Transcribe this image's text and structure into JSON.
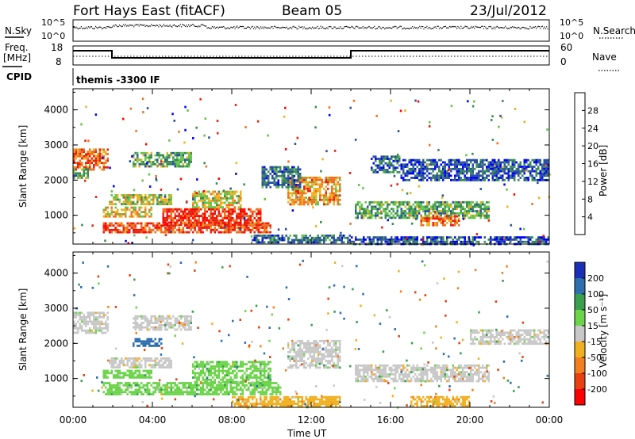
{
  "header": {
    "station": "Fort Hays East (fitACF)",
    "beam": "Beam 05",
    "date": "23/Jul/2012"
  },
  "top_panels": {
    "nsky_label": "N.Sky",
    "nsearch_label": "N.Search",
    "nsky_ticks": [
      "10^5",
      "10^0"
    ],
    "nsearch_ticks": [
      "10^5",
      "10^0"
    ],
    "freq_label_1": "Freq.",
    "freq_label_2": "[MHz]",
    "freq_ticks": [
      "18",
      "8"
    ],
    "nave_label": "Nave",
    "nave_ticks": [
      "60",
      "0"
    ],
    "cpid_label": "CPID",
    "cpid_text": "themis -3300 IF"
  },
  "x_axis": {
    "label": "Time UT",
    "ticks": [
      "00:00",
      "04:00",
      "08:00",
      "12:00",
      "16:00",
      "20:00",
      "00:00"
    ]
  },
  "colorbars": {
    "power": {
      "label": "Power [dB]",
      "ticks": [
        "28",
        "24",
        "20",
        "16",
        "12",
        "8",
        "4"
      ],
      "colors": [
        "#0000ff",
        "#2a4ea5",
        "#3a8a55",
        "#63c34a",
        "#f0b020",
        "#f07020",
        "#e82010",
        "#ff0000"
      ]
    },
    "velocity": {
      "label": "Velocity [m s⁻¹]",
      "ticks": [
        "200",
        "100",
        "50",
        "15",
        "-15",
        "-50",
        "-100",
        "-200"
      ],
      "colors": [
        "#1a2fb8",
        "#2e6fae",
        "#3aa050",
        "#6cd44a",
        "#c8c8c8",
        "#f0b020",
        "#f28020",
        "#e84010",
        "#ff0000"
      ]
    }
  },
  "chart_data": [
    {
      "type": "heatmap",
      "title": "Power",
      "ylabel": "Slant Range [km]",
      "xlabel": "",
      "x_ticks": [
        "00:00",
        "04:00",
        "08:00",
        "12:00",
        "16:00",
        "20:00",
        "00:00"
      ],
      "y_ticks": [
        "1000",
        "2000",
        "3000",
        "4000"
      ],
      "xlim_hours": [
        0,
        24
      ],
      "ylim_km": [
        180,
        4600
      ],
      "regions": [
        {
          "t0": 0.0,
          "t1": 1.8,
          "r0": 2300,
          "r1": 2900,
          "value": 22
        },
        {
          "t0": 0.0,
          "t1": 0.8,
          "r0": 2050,
          "r1": 2350,
          "value": 12
        },
        {
          "t0": 1.8,
          "t1": 5.0,
          "r0": 1300,
          "r1": 1600,
          "value": 16
        },
        {
          "t0": 3.0,
          "t1": 6.0,
          "r0": 2400,
          "r1": 2800,
          "value": 12
        },
        {
          "t0": 1.5,
          "t1": 4.0,
          "r0": 950,
          "r1": 1250,
          "value": 18
        },
        {
          "t0": 1.5,
          "t1": 10.0,
          "r0": 500,
          "r1": 800,
          "value": 24
        },
        {
          "t0": 4.5,
          "t1": 9.5,
          "r0": 700,
          "r1": 1200,
          "value": 26
        },
        {
          "t0": 6.0,
          "t1": 8.5,
          "r0": 1200,
          "r1": 1700,
          "value": 16
        },
        {
          "t0": 10.8,
          "t1": 13.5,
          "r0": 1300,
          "r1": 2100,
          "value": 20
        },
        {
          "t0": 14.2,
          "t1": 21.0,
          "r0": 900,
          "r1": 1400,
          "value": 12
        },
        {
          "t0": 17.5,
          "t1": 19.5,
          "r0": 700,
          "r1": 1000,
          "value": 22
        },
        {
          "t0": 9.0,
          "t1": 14.0,
          "r0": 200,
          "r1": 450,
          "value": 8
        },
        {
          "t0": 14.0,
          "t1": 24.0,
          "r0": 200,
          "r1": 400,
          "value": 6
        },
        {
          "t0": 9.5,
          "t1": 11.5,
          "r0": 1800,
          "r1": 2400,
          "value": 8
        },
        {
          "t0": 15.0,
          "t1": 16.5,
          "r0": 2200,
          "r1": 2700,
          "value": 8
        },
        {
          "t0": 16.5,
          "t1": 24.0,
          "r0": 2000,
          "r1": 2600,
          "value": 6
        }
      ]
    },
    {
      "type": "heatmap",
      "title": "Velocity",
      "ylabel": "Slant Range [km]",
      "xlabel": "Time UT",
      "x_ticks": [
        "00:00",
        "04:00",
        "08:00",
        "12:00",
        "16:00",
        "20:00",
        "00:00"
      ],
      "y_ticks": [
        "1000",
        "2000",
        "3000",
        "4000"
      ],
      "xlim_hours": [
        0,
        24
      ],
      "ylim_km": [
        180,
        4600
      ],
      "regions": [
        {
          "t0": 0.0,
          "t1": 1.8,
          "r0": 2300,
          "r1": 2900,
          "value": 0
        },
        {
          "t0": 1.8,
          "t1": 5.0,
          "r0": 1300,
          "r1": 1600,
          "value": 0
        },
        {
          "t0": 3.0,
          "t1": 6.0,
          "r0": 2400,
          "r1": 2800,
          "value": 0
        },
        {
          "t0": 1.5,
          "t1": 4.0,
          "r0": 1000,
          "r1": 1250,
          "value": 40
        },
        {
          "t0": 1.5,
          "t1": 10.5,
          "r0": 550,
          "r1": 900,
          "value": 40
        },
        {
          "t0": 6.0,
          "t1": 10.0,
          "r0": 900,
          "r1": 1500,
          "value": 40
        },
        {
          "t0": 8.0,
          "t1": 13.5,
          "r0": 200,
          "r1": 500,
          "value": -40
        },
        {
          "t0": 10.8,
          "t1": 13.5,
          "r0": 1300,
          "r1": 2100,
          "value": 0
        },
        {
          "t0": 14.2,
          "t1": 21.0,
          "r0": 900,
          "r1": 1400,
          "value": 0
        },
        {
          "t0": 17.0,
          "t1": 20.0,
          "r0": 200,
          "r1": 500,
          "value": -40
        },
        {
          "t0": 3.0,
          "t1": 4.5,
          "r0": 1950,
          "r1": 2150,
          "value": 150
        },
        {
          "t0": 20.0,
          "t1": 24.0,
          "r0": 2000,
          "r1": 2400,
          "value": 0
        }
      ]
    }
  ]
}
